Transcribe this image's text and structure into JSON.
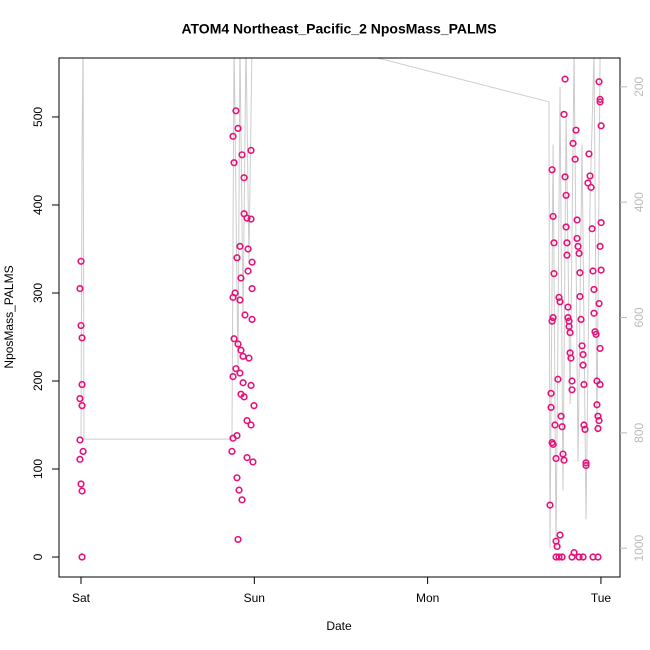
{
  "chart_data": {
    "type": "scatter",
    "title": "ATOM4 Northeast_Pacific_2 NposMass_PALMS",
    "xlabel": "Date",
    "ylabel": "NposMass_PALMS",
    "xlim": [
      -0.127,
      3.11
    ],
    "xticks": [
      {
        "value": 0,
        "label": "Sat"
      },
      {
        "value": 1,
        "label": "Sun"
      },
      {
        "value": 2,
        "label": "Mon"
      },
      {
        "value": 3,
        "label": "Tue"
      }
    ],
    "ylim": [
      -22.7,
      567
    ],
    "yticks": [
      0,
      100,
      200,
      300,
      400,
      500
    ],
    "y2lim": [
      1050,
      150
    ],
    "y2ticks": [
      200,
      400,
      600,
      800,
      1000
    ],
    "series": [
      {
        "color": "#e6127a",
        "x": [
          0.0,
          -0.006,
          0.0,
          0.006,
          0.006,
          -0.006,
          0.006,
          -0.006,
          0.012,
          -0.006,
          0.0,
          0.006,
          0.006,
          0.894,
          0.906,
          0.877,
          0.981,
          0.929,
          0.883,
          0.941,
          0.941,
          0.958,
          0.981,
          0.917,
          0.964,
          0.9,
          0.987,
          0.964,
          0.923,
          0.987,
          0.889,
          0.877,
          0.917,
          0.946,
          0.987,
          0.883,
          0.906,
          0.923,
          0.935,
          0.969,
          0.894,
          0.917,
          0.877,
          0.935,
          0.981,
          0.923,
          0.941,
          0.998,
          0.958,
          0.981,
          0.9,
          0.877,
          0.871,
          0.958,
          0.992,
          0.9,
          0.912,
          0.929,
          0.906,
          2.718,
          2.724,
          2.729,
          2.729,
          2.724,
          2.718,
          2.712,
          2.712,
          2.706,
          2.718,
          2.724,
          2.735,
          2.741,
          2.741,
          2.747,
          2.752,
          2.758,
          2.764,
          2.77,
          2.776,
          2.781,
          2.787,
          2.793,
          2.787,
          2.793,
          2.799,
          2.799,
          2.804,
          2.804,
          2.81,
          2.81,
          2.816,
          2.816,
          2.822,
          2.822,
          2.827,
          2.833,
          2.833,
          2.839,
          2.851,
          2.856,
          2.862,
          2.862,
          2.868,
          2.874,
          2.879,
          2.879,
          2.885,
          2.891,
          2.897,
          2.897,
          2.902,
          2.902,
          2.908,
          2.914,
          2.914,
          2.925,
          2.931,
          2.937,
          2.943,
          2.949,
          2.954,
          2.96,
          2.96,
          2.966,
          2.972,
          2.977,
          2.977,
          2.983,
          2.989,
          2.995,
          2.995,
          3.001,
          3.001,
          2.995,
          3.001,
          2.989,
          2.995,
          2.995,
          2.989,
          2.983,
          2.764,
          2.741,
          2.758,
          2.776,
          2.833,
          2.845,
          2.874,
          2.897,
          2.954,
          2.983
        ],
        "values": [
          336,
          305,
          263,
          249,
          196,
          180,
          172,
          133,
          120,
          111,
          83,
          75,
          0,
          507,
          487,
          478,
          462,
          457,
          448,
          431,
          390,
          385,
          384,
          353,
          350,
          340,
          335,
          325,
          317,
          305,
          300,
          295,
          292,
          275,
          270,
          248,
          242,
          235,
          228,
          226,
          214,
          209,
          205,
          198,
          195,
          185,
          182,
          172,
          155,
          150,
          138,
          135,
          120,
          113,
          108,
          90,
          76,
          65,
          20,
          440,
          387,
          357,
          322,
          272,
          268,
          186,
          170,
          59,
          130,
          128,
          150,
          112,
          18,
          12,
          202,
          295,
          290,
          160,
          148,
          117,
          110,
          543,
          503,
          432,
          411,
          375,
          357,
          343,
          284,
          272,
          268,
          262,
          255,
          232,
          226,
          200,
          190,
          470,
          452,
          485,
          383,
          362,
          353,
          345,
          323,
          296,
          270,
          240,
          230,
          218,
          196,
          150,
          145,
          107,
          104,
          425,
          458,
          433,
          420,
          373,
          325,
          304,
          277,
          256,
          253,
          200,
          173,
          160,
          540,
          517,
          520,
          490,
          380,
          353,
          326,
          288,
          237,
          196,
          155,
          146,
          25,
          0,
          0,
          0,
          0,
          5,
          0,
          0,
          0,
          0
        ]
      },
      {
        "type": "line",
        "axis": "y2",
        "color": "#cccccc",
        "x": [
          0.0,
          0.006,
          0.012,
          0.017,
          0.871,
          0.883,
          0.906,
          0.917,
          0.935,
          0.952,
          0.969,
          0.987,
          1.004,
          1.58,
          2.7,
          2.706,
          2.724,
          2.741,
          2.764,
          2.781,
          2.799,
          2.822,
          2.845,
          2.868,
          2.891,
          2.914,
          2.937,
          2.96,
          2.977,
          2.995
        ],
        "values": [
          811,
          306,
          120,
          811,
          811,
          120,
          700,
          120,
          600,
          120,
          500,
          120,
          120,
          140,
          226,
          1000,
          300,
          1000,
          200,
          900,
          250,
          750,
          140,
          850,
          300,
          950,
          400,
          140,
          800,
          140
        ]
      }
    ]
  }
}
